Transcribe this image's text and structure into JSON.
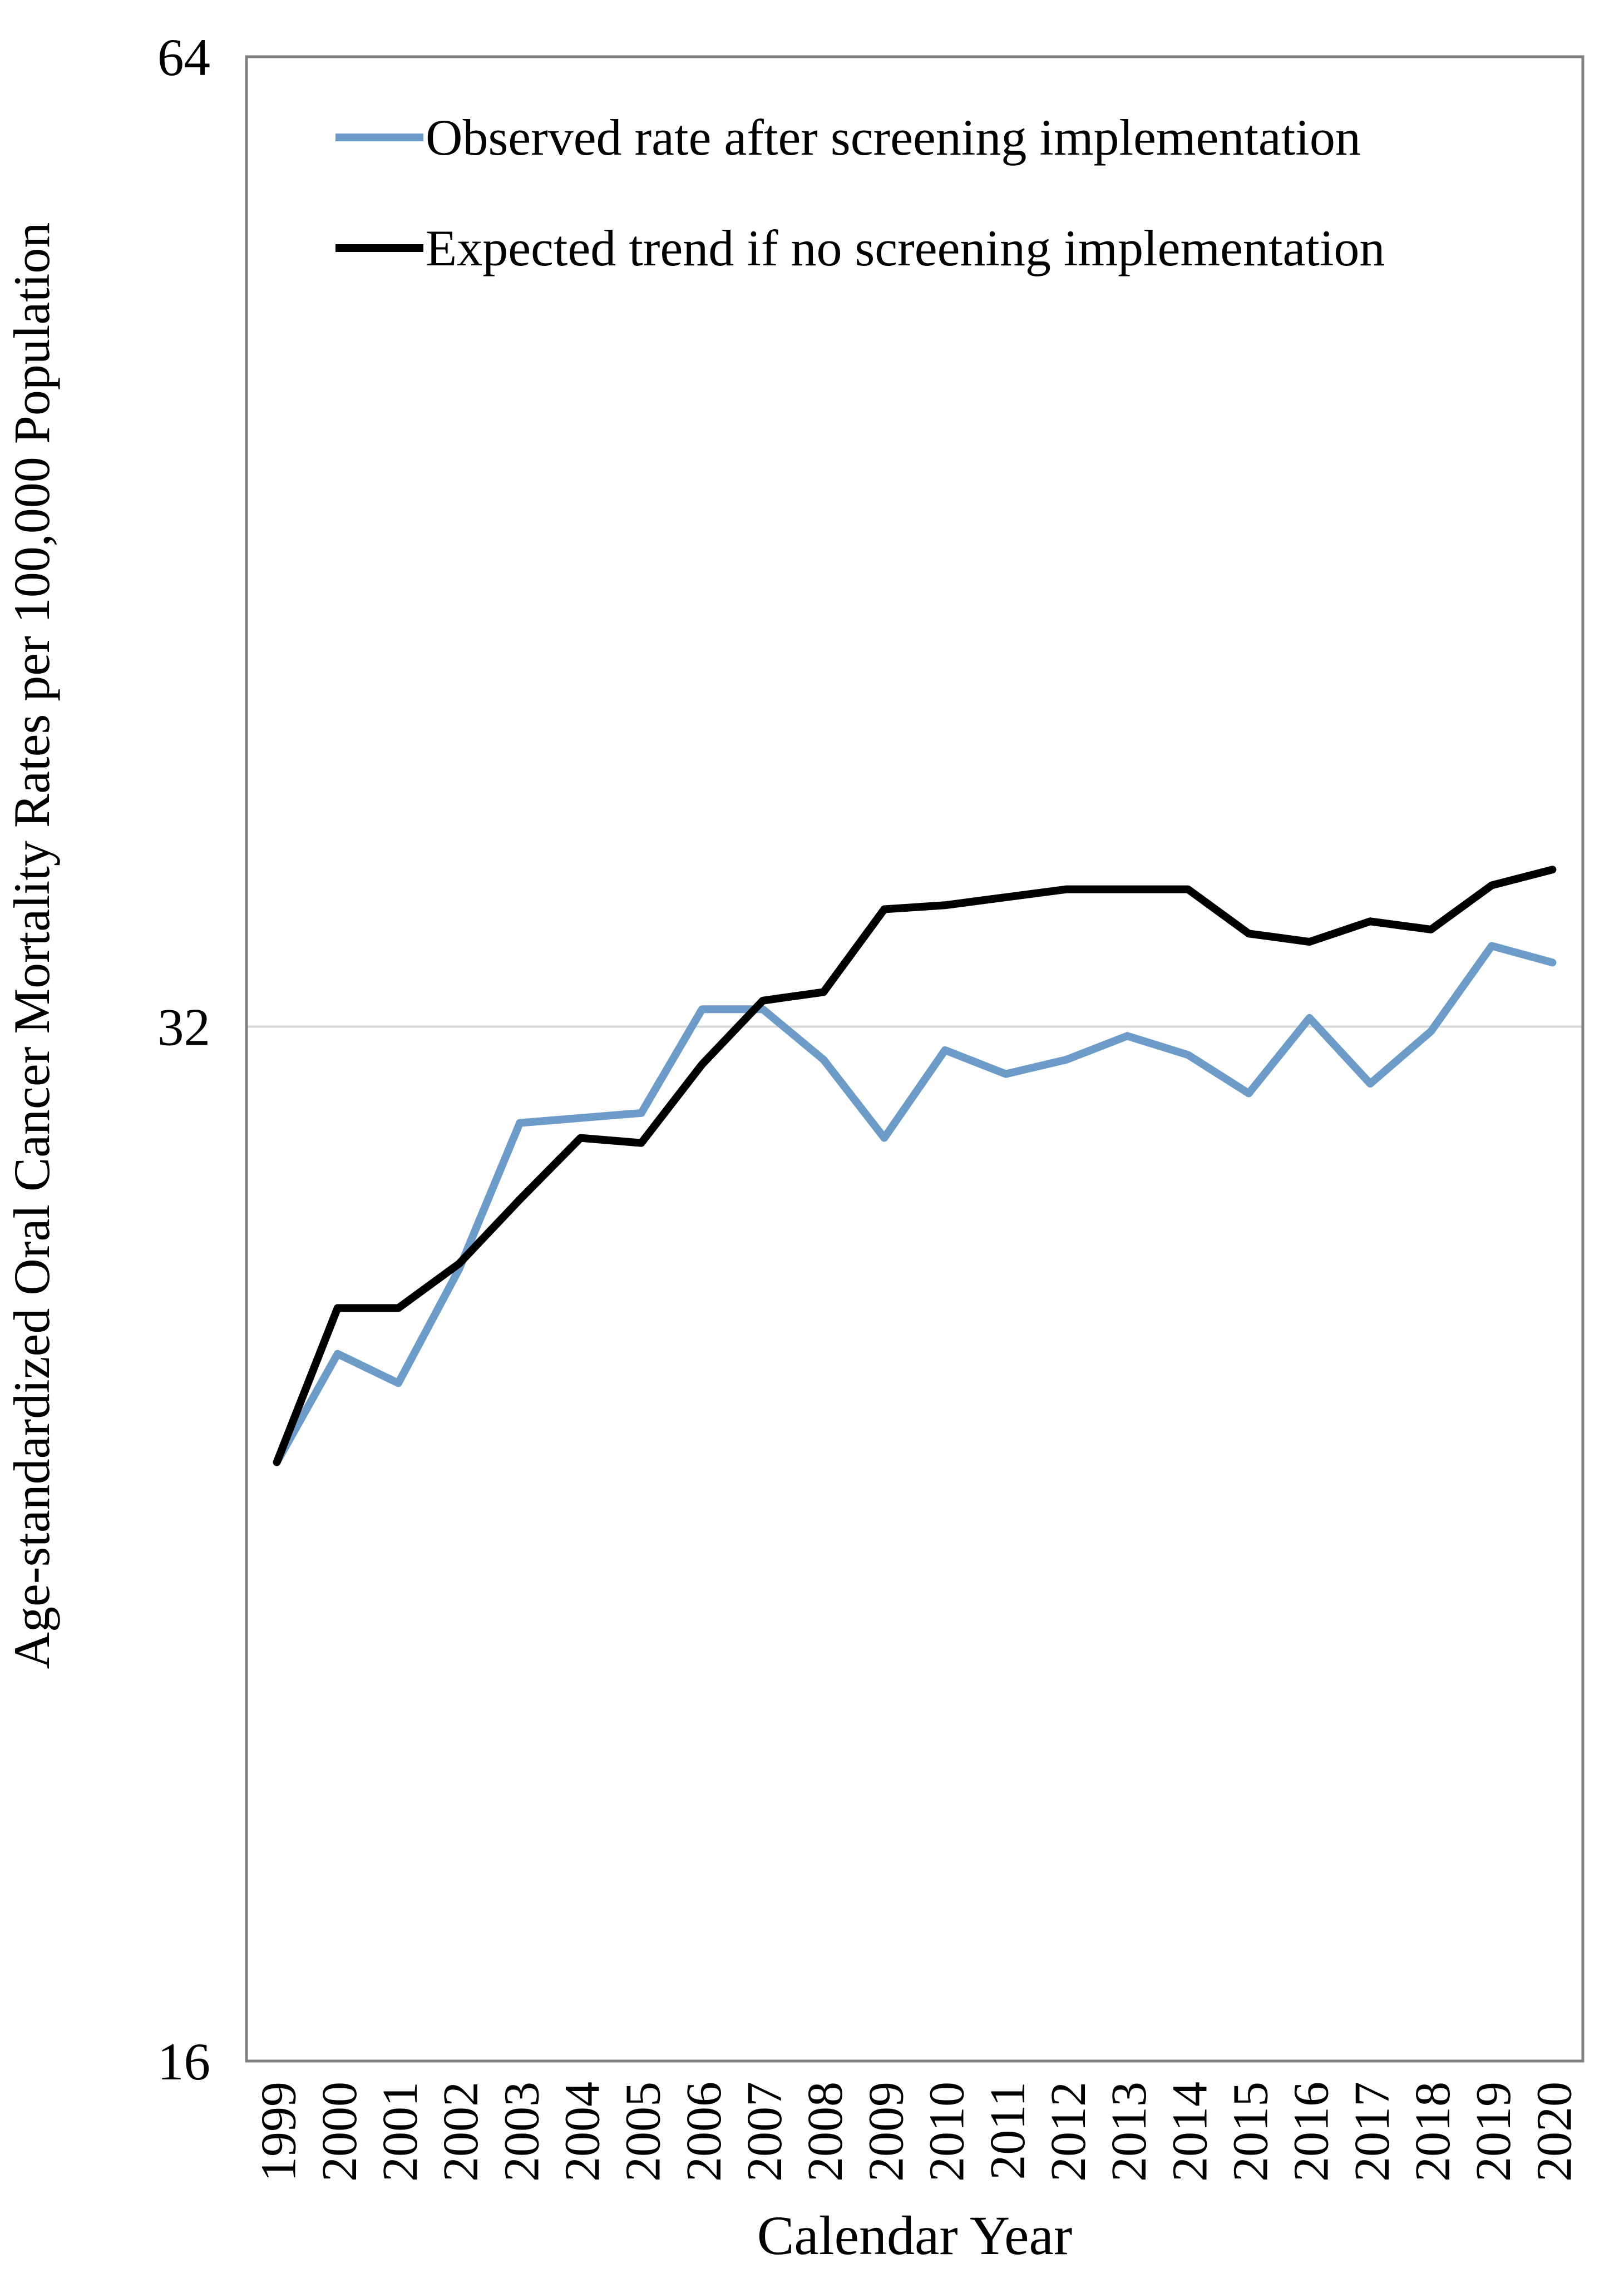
{
  "chart_data": {
    "type": "line",
    "title": "",
    "xlabel": "Calendar Year",
    "ylabel": "Age-standardized Oral Cancer Mortality Rates per 100,000 Population",
    "x": [
      1999,
      2000,
      2001,
      2002,
      2003,
      2004,
      2005,
      2006,
      2007,
      2008,
      2009,
      2010,
      2011,
      2012,
      2013,
      2014,
      2015,
      2016,
      2017,
      2018,
      2019,
      2020
    ],
    "series": [
      {
        "name": "Observed rate after screening implementation",
        "color": "#6d9cc9",
        "values": [
          23.9,
          25.7,
          25.2,
          27.2,
          30.0,
          30.1,
          30.2,
          32.4,
          32.4,
          31.3,
          29.7,
          31.5,
          31.0,
          31.3,
          31.8,
          31.4,
          30.6,
          32.2,
          30.8,
          31.9,
          33.9,
          33.5
        ]
      },
      {
        "name": "Expected trend if no screening implementation",
        "color": "#000000",
        "values": [
          23.9,
          26.5,
          26.5,
          27.3,
          28.5,
          29.7,
          29.6,
          31.2,
          32.6,
          32.8,
          34.8,
          34.9,
          35.1,
          35.3,
          35.3,
          35.3,
          34.2,
          34.0,
          34.5,
          34.3,
          35.4,
          35.8
        ]
      }
    ],
    "y_scale": "log2",
    "ylim": [
      16,
      64
    ],
    "yticks": [
      64,
      32,
      16
    ],
    "grid": "horizontal gridline at 32 only",
    "legend_position": "inside top-left",
    "axis_color": "#7f7f7f",
    "gridline_color": "#d9d9d9"
  }
}
